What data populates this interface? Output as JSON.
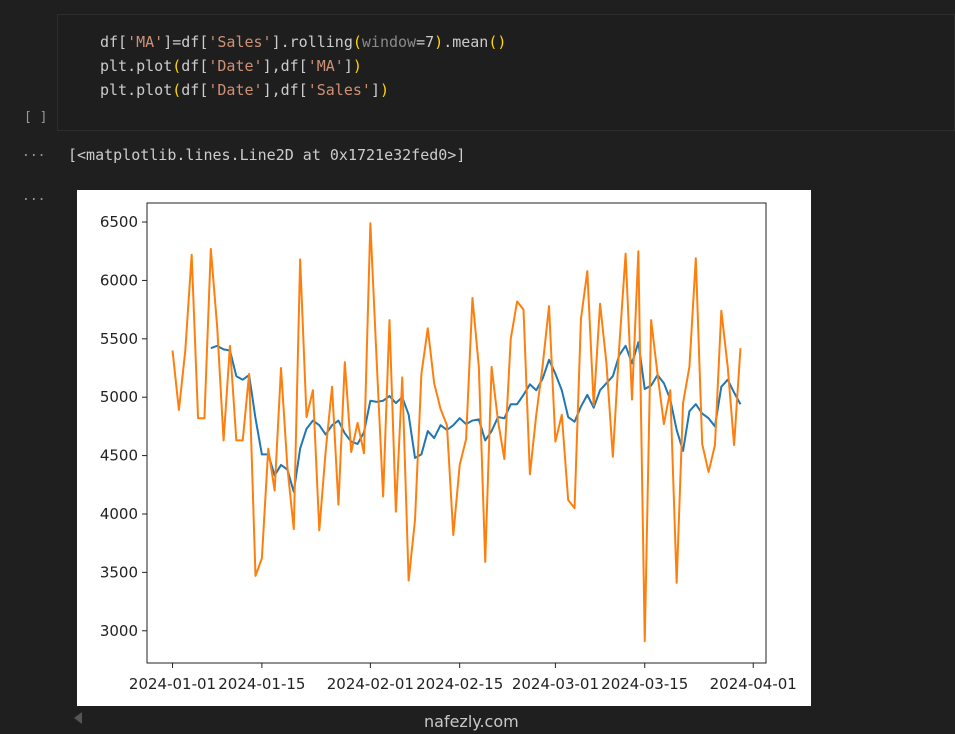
{
  "cell": {
    "prompt": "[ ]",
    "lines": [
      [
        {
          "text": "df[",
          "color": "#cccccc"
        },
        {
          "text": "'MA'",
          "color": "#ce9178"
        },
        {
          "text": "]=df[",
          "color": "#cccccc"
        },
        {
          "text": "'Sales'",
          "color": "#ce9178"
        },
        {
          "text": "].rolling",
          "color": "#cccccc"
        },
        {
          "text": "(",
          "color": "#ffd700"
        },
        {
          "text": "window",
          "color": "#8a8a8a"
        },
        {
          "text": "=7",
          "color": "#cccccc"
        },
        {
          "text": ")",
          "color": "#ffd700"
        },
        {
          "text": ".mean",
          "color": "#cccccc"
        },
        {
          "text": "()",
          "color": "#ffd700"
        }
      ],
      [
        {
          "text": "plt.plot",
          "color": "#cccccc"
        },
        {
          "text": "(",
          "color": "#ffd700"
        },
        {
          "text": "df[",
          "color": "#cccccc"
        },
        {
          "text": "'Date'",
          "color": "#ce9178"
        },
        {
          "text": "],df[",
          "color": "#cccccc"
        },
        {
          "text": "'MA'",
          "color": "#ce9178"
        },
        {
          "text": "]",
          "color": "#cccccc"
        },
        {
          "text": ")",
          "color": "#ffd700"
        }
      ],
      [
        {
          "text": "plt.plot",
          "color": "#cccccc"
        },
        {
          "text": "(",
          "color": "#ffd700"
        },
        {
          "text": "df[",
          "color": "#cccccc"
        },
        {
          "text": "'Date'",
          "color": "#ce9178"
        },
        {
          "text": "],df[",
          "color": "#cccccc"
        },
        {
          "text": "'Sales'",
          "color": "#ce9178"
        },
        {
          "text": "]",
          "color": "#cccccc"
        },
        {
          "text": ")",
          "color": "#ffd700"
        }
      ]
    ]
  },
  "output": {
    "marker1": "...",
    "text": "[<matplotlib.lines.Line2D at 0x1721e32fed0>]",
    "marker2": "..."
  },
  "watermark": "nafezly.com",
  "chart_data": {
    "type": "line",
    "x": [
      "2024-01-01",
      "2024-01-02",
      "2024-01-03",
      "2024-01-04",
      "2024-01-05",
      "2024-01-06",
      "2024-01-07",
      "2024-01-08",
      "2024-01-09",
      "2024-01-10",
      "2024-01-11",
      "2024-01-12",
      "2024-01-13",
      "2024-01-14",
      "2024-01-15",
      "2024-01-16",
      "2024-01-17",
      "2024-01-18",
      "2024-01-19",
      "2024-01-20",
      "2024-01-21",
      "2024-01-22",
      "2024-01-23",
      "2024-01-24",
      "2024-01-25",
      "2024-01-26",
      "2024-01-27",
      "2024-01-28",
      "2024-01-29",
      "2024-01-30",
      "2024-01-31",
      "2024-02-01",
      "2024-02-02",
      "2024-02-03",
      "2024-02-04",
      "2024-02-05",
      "2024-02-06",
      "2024-02-07",
      "2024-02-08",
      "2024-02-09",
      "2024-02-10",
      "2024-02-11",
      "2024-02-12",
      "2024-02-13",
      "2024-02-14",
      "2024-02-15",
      "2024-02-16",
      "2024-02-17",
      "2024-02-18",
      "2024-02-19",
      "2024-02-20",
      "2024-02-21",
      "2024-02-22",
      "2024-02-23",
      "2024-02-24",
      "2024-02-25",
      "2024-02-26",
      "2024-02-27",
      "2024-02-28",
      "2024-02-29",
      "2024-03-01",
      "2024-03-02",
      "2024-03-03",
      "2024-03-04",
      "2024-03-05",
      "2024-03-06",
      "2024-03-07",
      "2024-03-08",
      "2024-03-09",
      "2024-03-10",
      "2024-03-11",
      "2024-03-12",
      "2024-03-13",
      "2024-03-14",
      "2024-03-15",
      "2024-03-16",
      "2024-03-17",
      "2024-03-18",
      "2024-03-19",
      "2024-03-20",
      "2024-03-21",
      "2024-03-22",
      "2024-03-23",
      "2024-03-24",
      "2024-03-25",
      "2024-03-26",
      "2024-03-27",
      "2024-03-28",
      "2024-03-29",
      "2024-03-30"
    ],
    "series": [
      {
        "name": "MA",
        "color": "#1f77b4",
        "values": [
          null,
          null,
          null,
          null,
          null,
          null,
          5420,
          5440,
          5410,
          5400,
          5180,
          5150,
          5190,
          4820,
          4510,
          4510,
          4330,
          4420,
          4380,
          4190,
          4560,
          4730,
          4800,
          4760,
          4680,
          4760,
          4800,
          4690,
          4620,
          4600,
          4700,
          4970,
          4960,
          4970,
          5010,
          4950,
          5000,
          4850,
          4480,
          4510,
          4710,
          4650,
          4760,
          4720,
          4760,
          4820,
          4770,
          4800,
          4810,
          4630,
          4710,
          4830,
          4820,
          4940,
          4940,
          5020,
          5110,
          5060,
          5160,
          5320,
          5200,
          5060,
          4830,
          4790,
          4920,
          5020,
          4910,
          5060,
          5120,
          5180,
          5360,
          5440,
          5290,
          5470,
          5070,
          5100,
          5190,
          5120,
          4980,
          4720,
          4540,
          4880,
          4940,
          4860,
          4820,
          4750,
          5090,
          5150,
          5040,
          4940
        ]
      },
      {
        "name": "Sales",
        "color": "#ff7f0e",
        "values": [
          5400,
          4890,
          5400,
          6220,
          4820,
          4820,
          6270,
          5600,
          4630,
          5440,
          4630,
          4630,
          5200,
          3470,
          3620,
          4560,
          4200,
          5250,
          4400,
          3870,
          6180,
          4830,
          5060,
          3860,
          4540,
          5090,
          4080,
          5300,
          4530,
          4780,
          4520,
          6490,
          5300,
          4150,
          5660,
          4020,
          5170,
          3430,
          3950,
          5200,
          5590,
          5120,
          4900,
          4760,
          3820,
          4420,
          4640,
          5850,
          5260,
          3590,
          5260,
          4800,
          4470,
          5500,
          5820,
          5750,
          4340,
          4850,
          5270,
          5780,
          4620,
          4850,
          4120,
          4050,
          5670,
          6080,
          4930,
          5800,
          5290,
          4490,
          5430,
          6230,
          4980,
          6250,
          2910,
          5660,
          5200,
          4770,
          5060,
          3410,
          4950,
          5260,
          6190,
          4600,
          4360,
          4590,
          5740,
          5260,
          4590,
          5420
        ]
      }
    ],
    "xlim": [
      "2023-12-28",
      "2024-04-03"
    ],
    "xticks": [
      "2024-01-01",
      "2024-01-15",
      "2024-02-01",
      "2024-02-15",
      "2024-03-01",
      "2024-03-15",
      "2024-04-01"
    ],
    "ylim": [
      2724,
      6663
    ],
    "yticks": [
      3000,
      3500,
      4000,
      4500,
      5000,
      5500,
      6000,
      6500
    ],
    "grid": false
  }
}
